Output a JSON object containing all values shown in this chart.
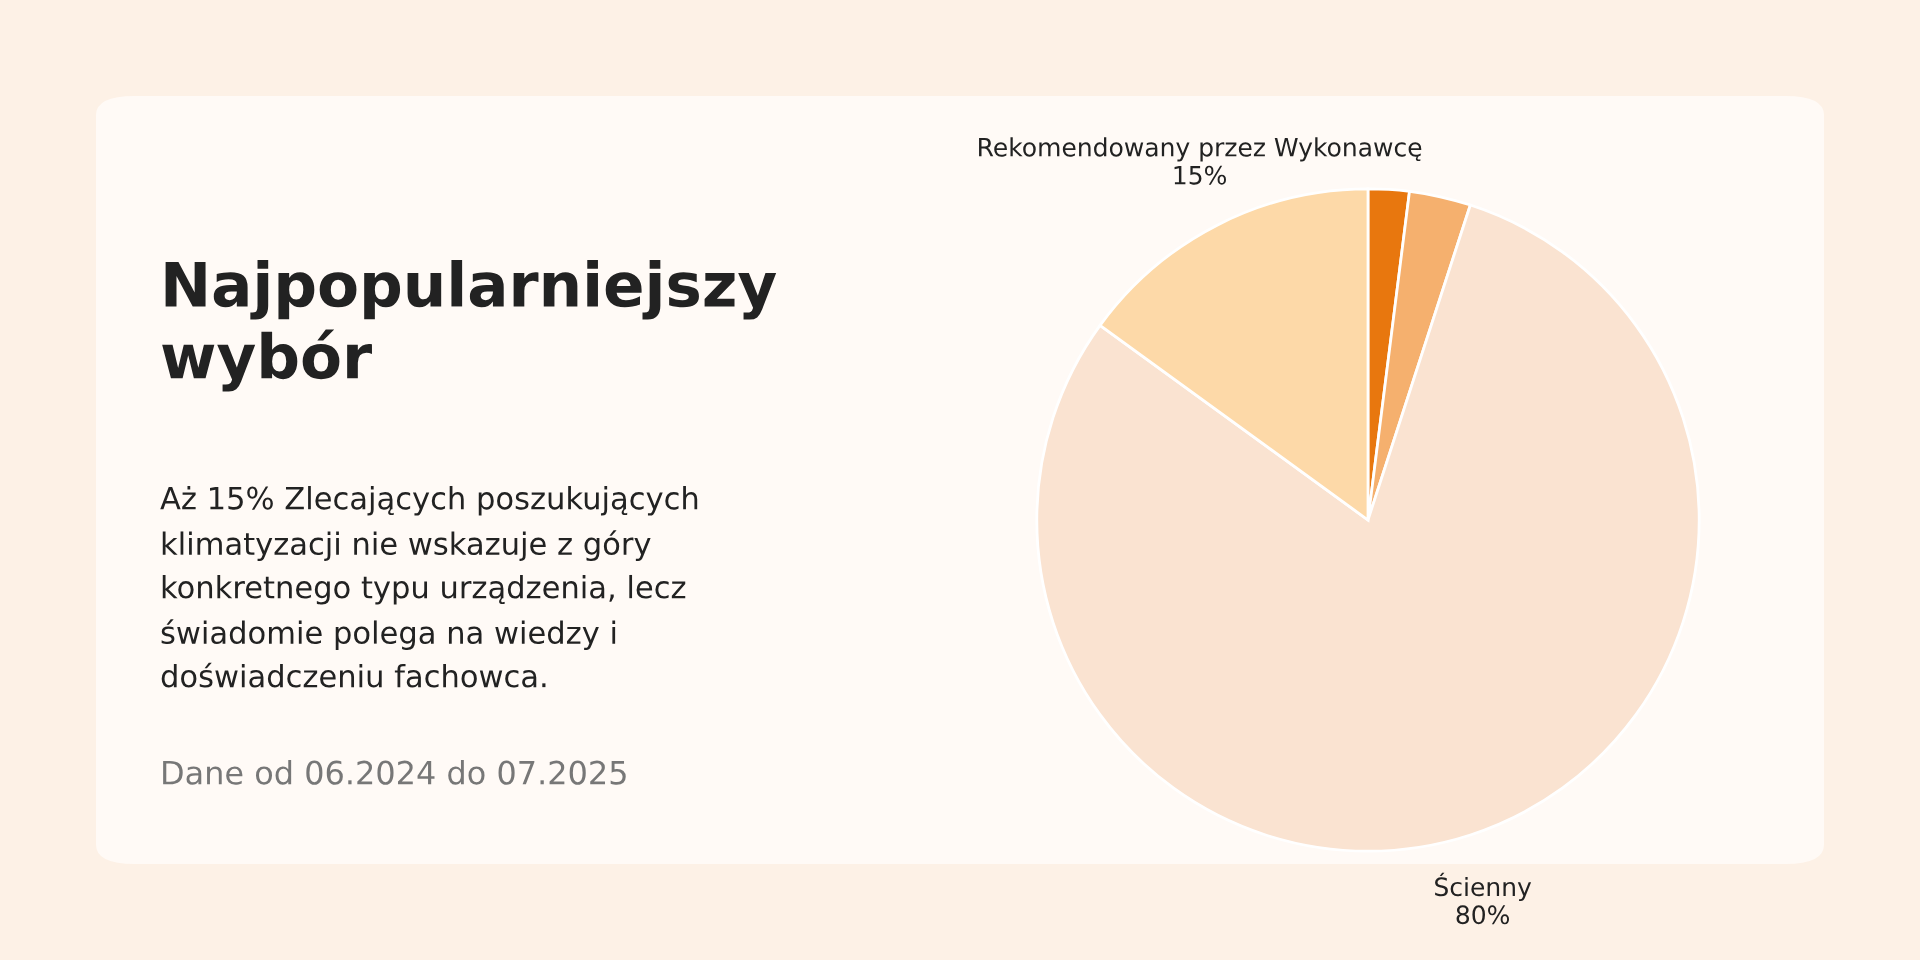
{
  "chart_data": {
    "type": "pie",
    "title": "Najpopularniejszy wybór",
    "subtitle": "Aż 15% Zlecających poszukujących klimatyzacji nie wskazuje z góry konkretnego typu urządzenia, lecz świadomie polega na wiedzy i doświadczeniu fachowca.",
    "annotations": [
      "Dane od 06.2024 do 07.2025"
    ],
    "categories": [
      null,
      null,
      "Ścienny",
      "Rekomendowany przez Wykonawcę"
    ],
    "values": [
      2,
      3,
      80,
      15
    ],
    "colors": [
      "#e8770e",
      "#f5b06e",
      "#fae3d1",
      "#fdd9a8"
    ],
    "value_labels": [
      null,
      null,
      "80%",
      "15%"
    ]
  }
}
